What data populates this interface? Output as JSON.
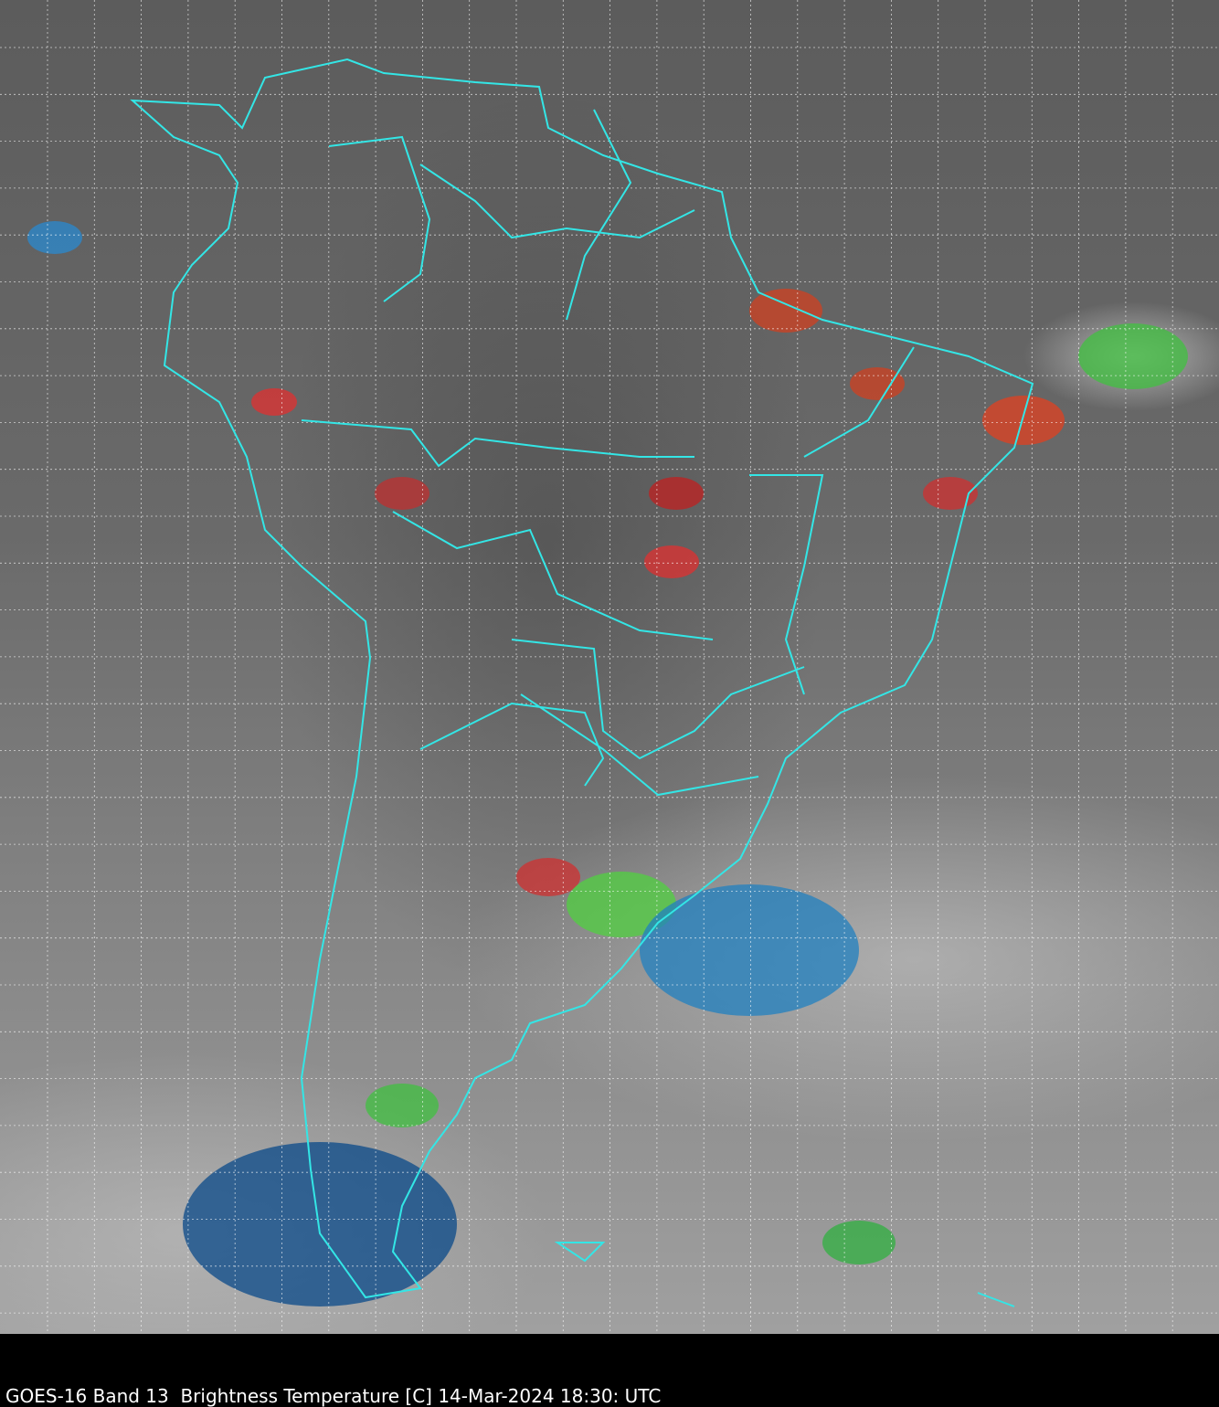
{
  "caption": "GOES-16 Band 13  Brightness Temperature [C] 14-Mar-2024 18:30: UTC",
  "colors": {
    "borders": "#33e6e6",
    "grid": "#ffffff",
    "background": "#000000"
  },
  "map": {
    "product": "infrared brightness temperature imagery",
    "region": "South America",
    "gridlines": true,
    "dashed_grid": true
  }
}
